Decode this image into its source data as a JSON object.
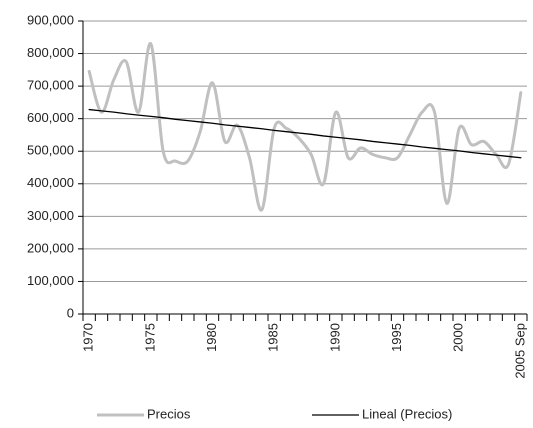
{
  "chart_data": {
    "type": "line",
    "categories": [
      "1970",
      null,
      null,
      null,
      null,
      "1975",
      null,
      null,
      null,
      null,
      "1980",
      null,
      null,
      null,
      null,
      "1985",
      null,
      null,
      null,
      null,
      "1990",
      null,
      null,
      null,
      null,
      "1995",
      null,
      null,
      null,
      null,
      "2000",
      null,
      null,
      null,
      null,
      "2005 Sep"
    ],
    "series": [
      {
        "name": "Precios",
        "color": "#c0c0c0",
        "smooth": true,
        "values": [
          745000,
          620000,
          720000,
          775000,
          620000,
          830000,
          500000,
          470000,
          470000,
          560000,
          710000,
          530000,
          580000,
          480000,
          320000,
          570000,
          570000,
          540000,
          490000,
          400000,
          620000,
          480000,
          510000,
          490000,
          480000,
          480000,
          550000,
          620000,
          620000,
          340000,
          570000,
          520000,
          530000,
          490000,
          460000,
          680000
        ]
      },
      {
        "name": "Lineal (Precios)",
        "color": "#000000",
        "smooth": false,
        "values": [
          628000,
          624000,
          620000,
          615000,
          611000,
          607000,
          603000,
          598000,
          594000,
          590000,
          586000,
          581000,
          577000,
          573000,
          569000,
          564000,
          560000,
          556000,
          552000,
          547000,
          543000,
          539000,
          535000,
          530000,
          526000,
          522000,
          518000,
          513000,
          509000,
          505000,
          501000,
          496000,
          492000,
          488000,
          484000,
          480000
        ]
      }
    ],
    "ylim": [
      0,
      900000
    ],
    "yticks": [
      0,
      {
        "value": 100000,
        "label": "100,000"
      },
      {
        "value": 200000,
        "label": "200,000"
      },
      {
        "value": 300000,
        "label": "300,000"
      },
      {
        "value": 400000,
        "label": "400,000"
      },
      {
        "value": 500000,
        "label": "500,000"
      },
      {
        "value": 600000,
        "label": "600,000"
      },
      {
        "value": 700000,
        "label": "700,000"
      },
      {
        "value": 800000,
        "label": "800,000"
      },
      {
        "value": 900000,
        "label": "900,000"
      }
    ],
    "grid": true,
    "legend": "bottom"
  }
}
